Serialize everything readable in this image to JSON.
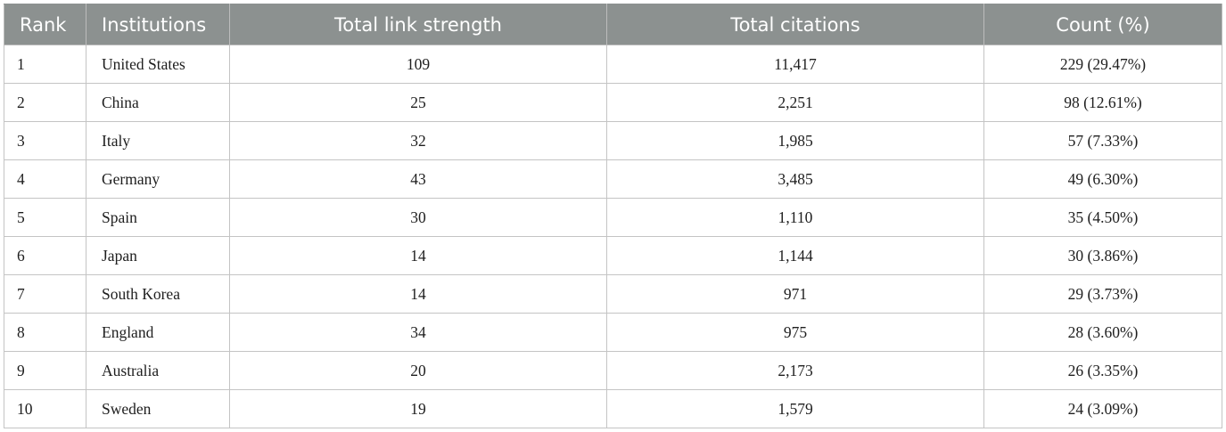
{
  "table": {
    "headers": [
      "Rank",
      "Institutions",
      "Total link strength",
      "Total citations",
      "Count (%)"
    ],
    "rows": [
      [
        "1",
        "United States",
        "109",
        "11,417",
        "229 (29.47%)"
      ],
      [
        "2",
        "China",
        "25",
        "2,251",
        "98 (12.61%)"
      ],
      [
        "3",
        "Italy",
        "32",
        "1,985",
        "57 (7.33%)"
      ],
      [
        "4",
        "Germany",
        "43",
        "3,485",
        "49 (6.30%)"
      ],
      [
        "5",
        "Spain",
        "30",
        "1,110",
        "35 (4.50%)"
      ],
      [
        "6",
        "Japan",
        "14",
        "1,144",
        "30 (3.86%)"
      ],
      [
        "7",
        "South Korea",
        "14",
        "971",
        "29 (3.73%)"
      ],
      [
        "8",
        "England",
        "34",
        "975",
        "28 (3.60%)"
      ],
      [
        "9",
        "Australia",
        "20",
        "2,173",
        "26 (3.35%)"
      ],
      [
        "10",
        "Sweden",
        "19",
        "1,579",
        "24 (3.09%)"
      ]
    ]
  },
  "colors": {
    "header_background": "#8c9190",
    "header_text": "#ffffff",
    "grid_lines": "#c4c4c4"
  }
}
